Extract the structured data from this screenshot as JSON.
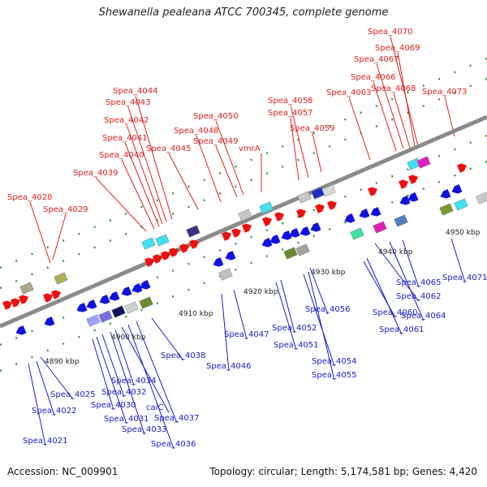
{
  "title": "Shewanella pealeana ATCC 700345, complete genome",
  "footer": {
    "accession": "Accession: NC_009901",
    "summary": "Topology: circular; Length: 5,174,581 bp; Genes: 4,420"
  },
  "colors": {
    "upper_label": "#e02020",
    "lower_label": "#1a1acc",
    "forward_arrow": "#ee1111",
    "reverse_arrow": "#1111dd",
    "backbone": "#8a8a8a",
    "tick_dash": "#3a9a3a"
  },
  "kbp_ticks": [
    "4890 kbp",
    "4900 kbp",
    "4910 kbp",
    "4920 kbp",
    "4930 kbp",
    "4940 kbp",
    "4950 kbp"
  ],
  "upper_labels": [
    "Spea_4028",
    "Spea_4029",
    "Spea_4039",
    "Spea_4040",
    "Spea_4041",
    "Spea_4042",
    "Spea_4043",
    "Spea_4044",
    "Spea_4045",
    "Spea_4048",
    "Spea_4049",
    "Spea_4050",
    "vmrA",
    "Spea_4057",
    "Spea_4058",
    "Spea_4059",
    "Spea_4063",
    "Spea_4066",
    "Spea_4067",
    "Spea_4068",
    "Spea_4069",
    "Spea_4070",
    "Spea_4073"
  ],
  "lower_labels": [
    "Spea_4021",
    "Spea_4022",
    "Spea_4025",
    "Spea_4030",
    "Spea_4031",
    "Spea_4032",
    "Spea_4033",
    "Spea_4034",
    "caiC",
    "Spea_4036",
    "Spea_4037",
    "Spea_4038",
    "Spea_4046",
    "Spea_4047",
    "Spea_4051",
    "Spea_4052",
    "Spea_4054",
    "Spea_4055",
    "Spea_4056",
    "Spea_4060",
    "Spea_4061",
    "Spea_4062",
    "Spea_4064",
    "Spea_4065",
    "Spea_4071"
  ]
}
